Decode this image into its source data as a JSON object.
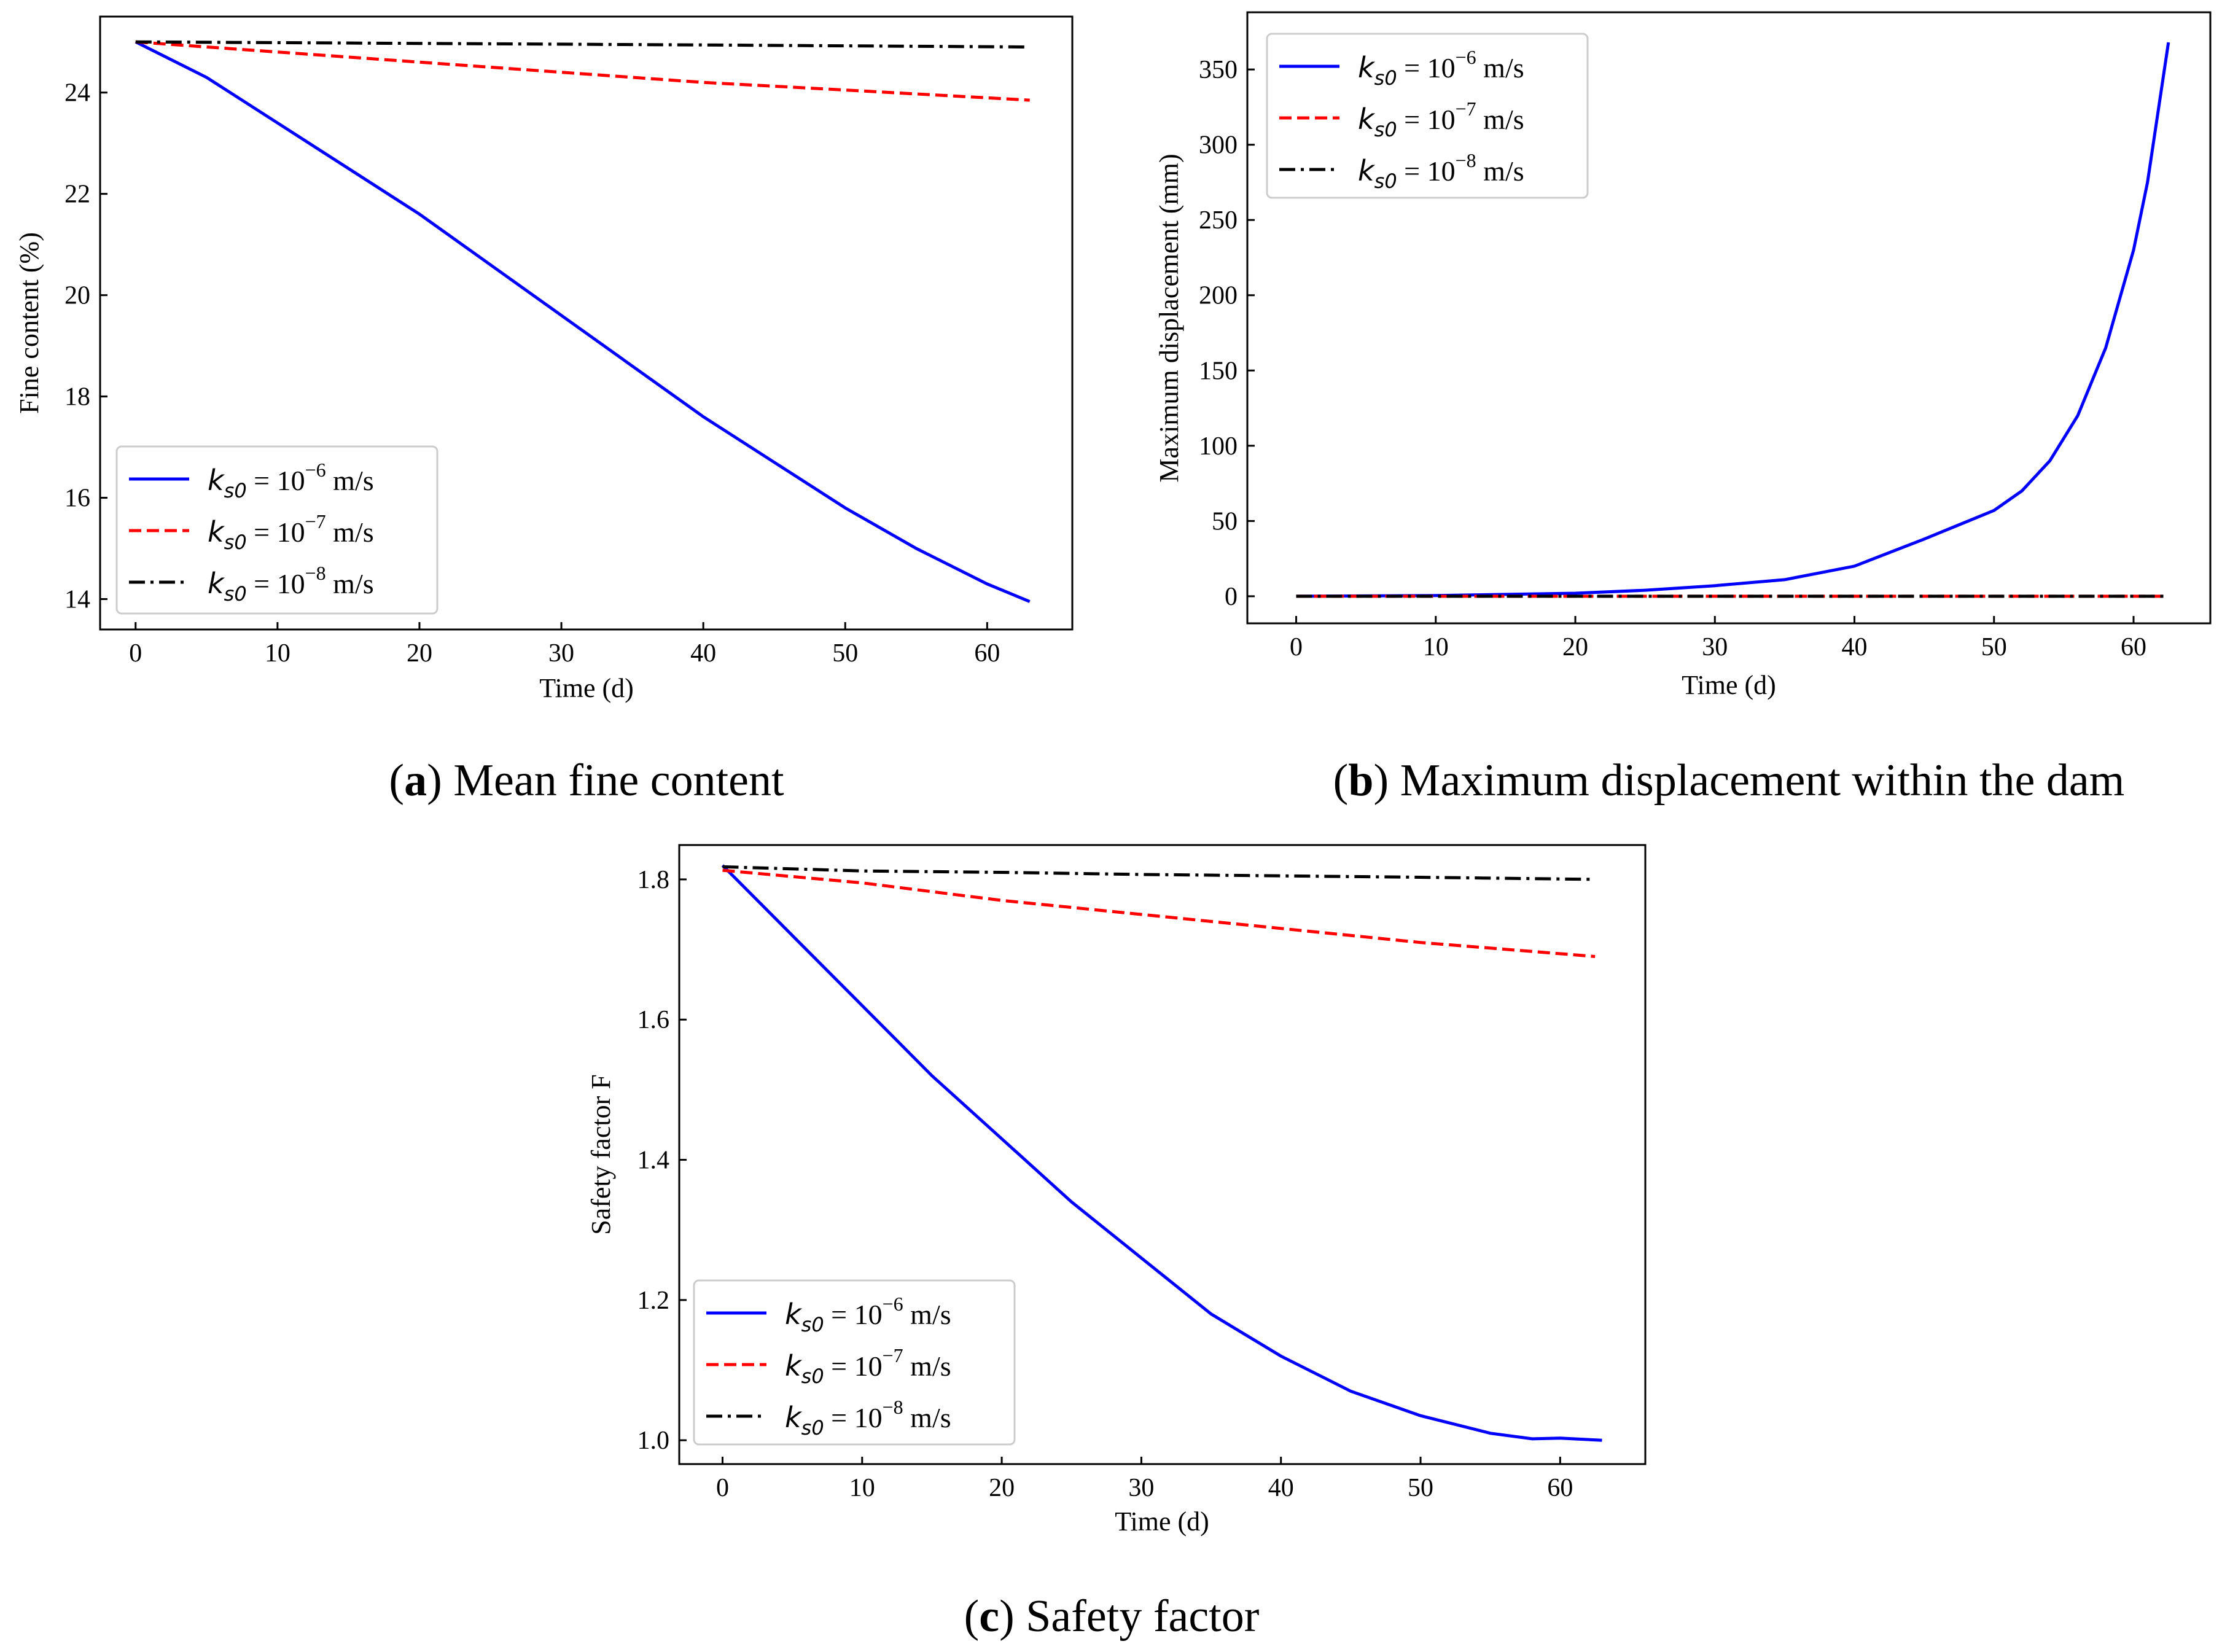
{
  "figure": {
    "panels": [
      {
        "caption_letter": "a",
        "caption_text": "Mean fine content"
      },
      {
        "caption_letter": "b",
        "caption_text": "Maximum displacement within the dam"
      },
      {
        "caption_letter": "c",
        "caption_text": "Safety factor"
      }
    ]
  },
  "legend": {
    "symbol": "k",
    "subscript": "s0",
    "equals": " = 10",
    "unit": " m/s",
    "entries": [
      {
        "exponent": "−6"
      },
      {
        "exponent": "−7"
      },
      {
        "exponent": "−8"
      }
    ]
  },
  "chart_data": [
    {
      "type": "line",
      "title": "(a) Mean fine content",
      "xlabel": "Time (d)",
      "ylabel": "Fine content (%)",
      "xlim": [
        -2.5,
        66
      ],
      "ylim": [
        13.4,
        25.5
      ],
      "xticks": [
        0,
        10,
        20,
        30,
        40,
        50,
        60
      ],
      "yticks": [
        14,
        16,
        18,
        20,
        22,
        24
      ],
      "xtick_labels": [
        "0",
        "10",
        "20",
        "30",
        "40",
        "50",
        "60"
      ],
      "ytick_labels": [
        "14",
        "16",
        "18",
        "20",
        "22",
        "24"
      ],
      "legend_position": "lower-left",
      "series": [
        {
          "name": "ks0 = 10^-6 m/s",
          "color": "#0000ff",
          "style": "solid",
          "x": [
            0,
            5,
            10,
            15,
            20,
            25,
            30,
            35,
            40,
            45,
            50,
            55,
            60,
            63
          ],
          "y": [
            25.0,
            24.3,
            23.4,
            22.5,
            21.6,
            20.6,
            19.6,
            18.6,
            17.6,
            16.7,
            15.8,
            15.0,
            14.3,
            13.95
          ]
        },
        {
          "name": "ks0 = 10^-7 m/s",
          "color": "#ff0000",
          "style": "dashed",
          "x": [
            0,
            10,
            20,
            30,
            40,
            50,
            63
          ],
          "y": [
            25.0,
            24.8,
            24.6,
            24.4,
            24.2,
            24.05,
            23.85
          ]
        },
        {
          "name": "ks0 = 10^-8 m/s",
          "color": "#000000",
          "style": "dashdot",
          "x": [
            0,
            20,
            40,
            63
          ],
          "y": [
            25.0,
            24.97,
            24.94,
            24.9
          ]
        }
      ]
    },
    {
      "type": "line",
      "title": "(b) Maximum displacement within the dam",
      "xlabel": "Time (d)",
      "ylabel": "Maximum displacement (mm)",
      "xlim": [
        -3.5,
        65.5
      ],
      "ylim": [
        -18,
        388
      ],
      "xticks": [
        0,
        10,
        20,
        30,
        40,
        50,
        60
      ],
      "yticks": [
        0,
        50,
        100,
        150,
        200,
        250,
        300,
        350
      ],
      "xtick_labels": [
        "0",
        "10",
        "20",
        "30",
        "40",
        "50",
        "60"
      ],
      "ytick_labels": [
        "0",
        "50",
        "100",
        "150",
        "200",
        "250",
        "300",
        "350"
      ],
      "legend_position": "upper-left",
      "series": [
        {
          "name": "ks0 = 10^-6 m/s",
          "color": "#0000ff",
          "style": "solid",
          "x": [
            0,
            10,
            20,
            25,
            30,
            35,
            40,
            45,
            50,
            52,
            54,
            56,
            58,
            60,
            61,
            62.5
          ],
          "y": [
            0,
            0.5,
            2,
            4,
            7,
            11,
            20,
            38,
            57,
            70,
            90,
            120,
            165,
            230,
            275,
            368
          ]
        },
        {
          "name": "ks0 = 10^-7 m/s",
          "color": "#ff0000",
          "style": "dashed",
          "x": [
            0,
            62.5
          ],
          "y": [
            0,
            0
          ]
        },
        {
          "name": "ks0 = 10^-8 m/s",
          "color": "#000000",
          "style": "dashdot",
          "x": [
            0,
            62.5
          ],
          "y": [
            0,
            0
          ]
        }
      ]
    },
    {
      "type": "line",
      "title": "(c) Safety factor",
      "xlabel": "Time (d)",
      "ylabel": "Safety factor F",
      "xlim": [
        -3.1,
        66.1
      ],
      "ylim": [
        0.966,
        1.849
      ],
      "xticks": [
        0,
        10,
        20,
        30,
        40,
        50,
        60
      ],
      "yticks": [
        1.0,
        1.2,
        1.4,
        1.6,
        1.8
      ],
      "xtick_labels": [
        "0",
        "10",
        "20",
        "30",
        "40",
        "50",
        "60"
      ],
      "ytick_labels": [
        "1.0",
        "1.2",
        "1.4",
        "1.6",
        "1.8"
      ],
      "legend_position": "lower-left",
      "series": [
        {
          "name": "ks0 = 10^-6 m/s",
          "color": "#0000ff",
          "style": "solid",
          "x": [
            0,
            5,
            10,
            15,
            20,
            25,
            30,
            35,
            40,
            45,
            50,
            55,
            58,
            60,
            63
          ],
          "y": [
            1.82,
            1.72,
            1.62,
            1.52,
            1.43,
            1.34,
            1.26,
            1.18,
            1.12,
            1.07,
            1.035,
            1.01,
            1.002,
            1.003,
            1.0
          ]
        },
        {
          "name": "ks0 = 10^-7 m/s",
          "color": "#ff0000",
          "style": "dashed",
          "x": [
            0,
            10,
            20,
            30,
            40,
            50,
            62.5
          ],
          "y": [
            1.813,
            1.795,
            1.77,
            1.75,
            1.73,
            1.71,
            1.69
          ]
        },
        {
          "name": "ks0 = 10^-8 m/s",
          "color": "#000000",
          "style": "dashdot",
          "x": [
            0,
            10,
            20,
            30,
            40,
            50,
            62.5
          ],
          "y": [
            1.818,
            1.812,
            1.81,
            1.807,
            1.805,
            1.803,
            1.8
          ]
        }
      ]
    }
  ]
}
